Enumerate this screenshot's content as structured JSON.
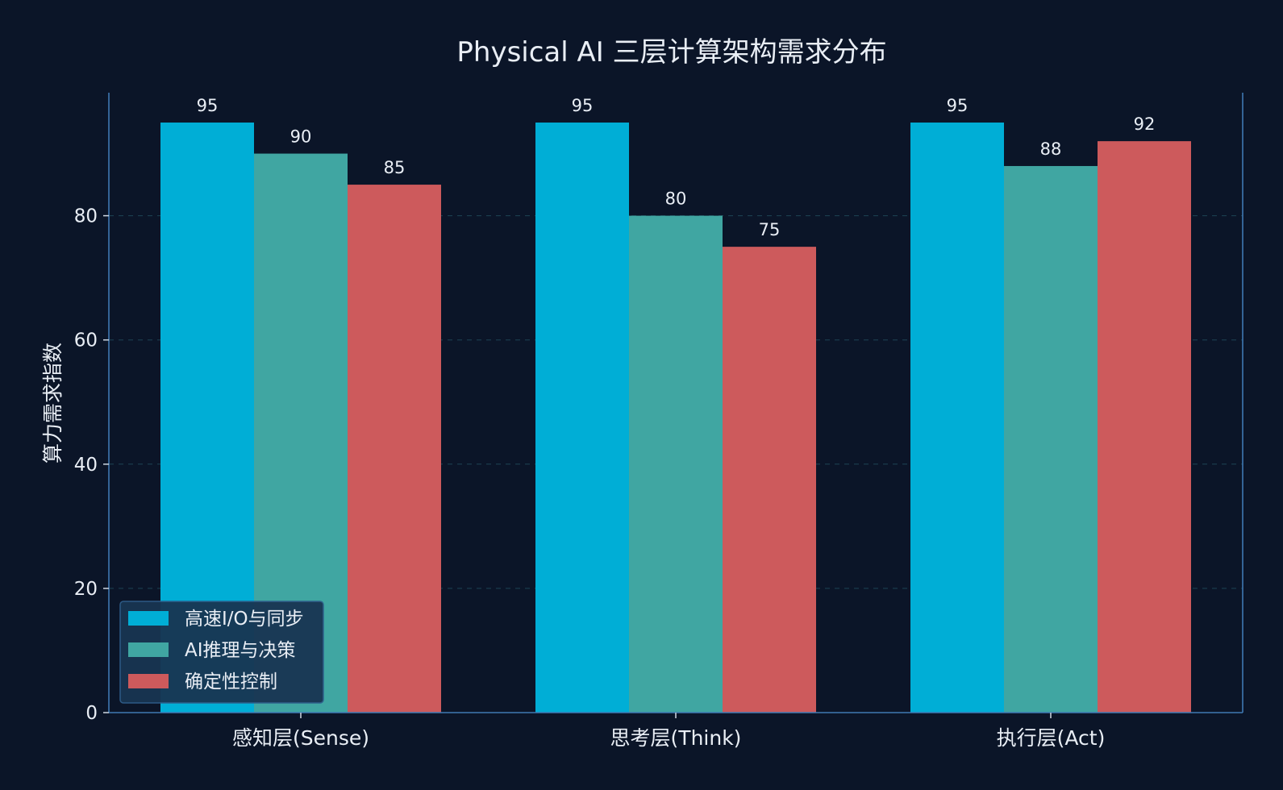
{
  "chart_data": {
    "type": "bar",
    "title": "Physical AI 三层计算架构需求分布",
    "xlabel": "",
    "ylabel": "算力需求指数",
    "categories": [
      "感知层(Sense)",
      "思考层(Think)",
      "执行层(Act)"
    ],
    "series": [
      {
        "name": "高速I/O与同步",
        "values": [
          95,
          95,
          95
        ],
        "color": "#00aed6"
      },
      {
        "name": "AI推理与决策",
        "values": [
          90,
          80,
          88
        ],
        "color": "#40a6a2"
      },
      {
        "name": "确定性控制",
        "values": [
          85,
          75,
          92
        ],
        "color": "#cd5a5c"
      }
    ],
    "ylim": [
      0,
      100
    ],
    "yticks": [
      0,
      20,
      40,
      60,
      80
    ],
    "grid": true,
    "legend_position": "lower-left",
    "colors": {
      "background": "#0b1528",
      "axis": "#3f79b3",
      "grid": "#2a6b7a",
      "text": "#e9eef5",
      "legend_bg": "#183552",
      "legend_border": "#2f5e8a"
    }
  }
}
